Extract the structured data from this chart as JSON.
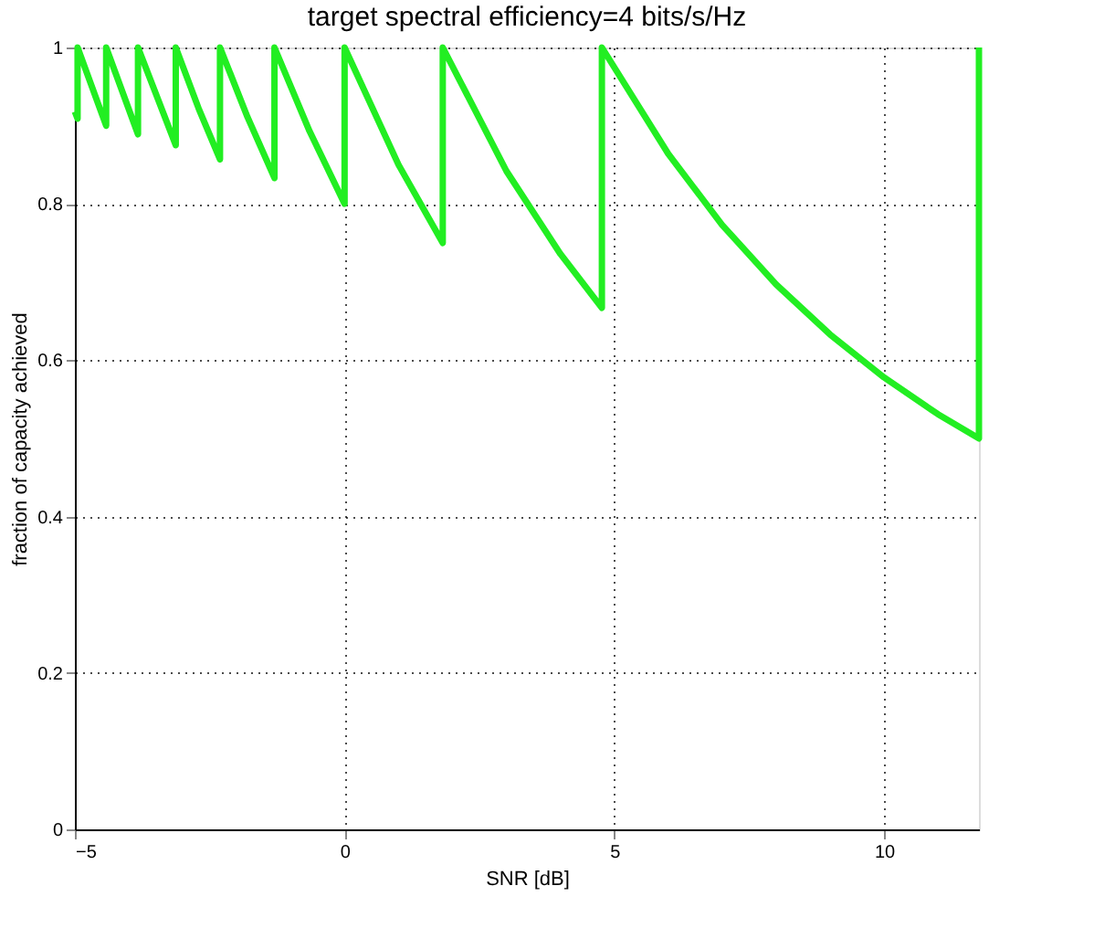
{
  "chart_data": {
    "type": "line",
    "title": "target spectral efficiency=4 bits/s/Hz",
    "xlabel": "SNR [dB]",
    "ylabel": "fraction of capacity achieved",
    "x": [
      -5,
      -4.95,
      -4.95,
      -4.42,
      -4.42,
      -3.83,
      -3.83,
      -3.13,
      -3.13,
      -2.7,
      -2.31,
      -2.31,
      -1.8,
      -1.3,
      -1.3,
      -0.65,
      0,
      0,
      1,
      1.82,
      1.82,
      3,
      4,
      4.77,
      4.77,
      6,
      7,
      8,
      9,
      10,
      11,
      11.76,
      11.76
    ],
    "series": [
      {
        "color": "#22ee22",
        "values": [
          0.918,
          0.909,
          1,
          0.9,
          1,
          0.889,
          1,
          0.875,
          1,
          0.921,
          0.857,
          1,
          0.911,
          0.833,
          1,
          0.893,
          0.8,
          1,
          0.85,
          0.75,
          1,
          0.842,
          0.736,
          0.667,
          1,
          0.864,
          0.773,
          0.697,
          0.633,
          0.578,
          0.531,
          0.5,
          1
        ]
      }
    ],
    "xlim": [
      -5,
      11.76
    ],
    "xticks": [
      -5,
      0,
      5,
      10
    ],
    "ylim": [
      0,
      1
    ],
    "yticks": [
      0,
      0.2,
      0.4,
      0.6,
      0.8,
      1
    ],
    "grid": true,
    "line_style": "solid",
    "marker": "none"
  }
}
